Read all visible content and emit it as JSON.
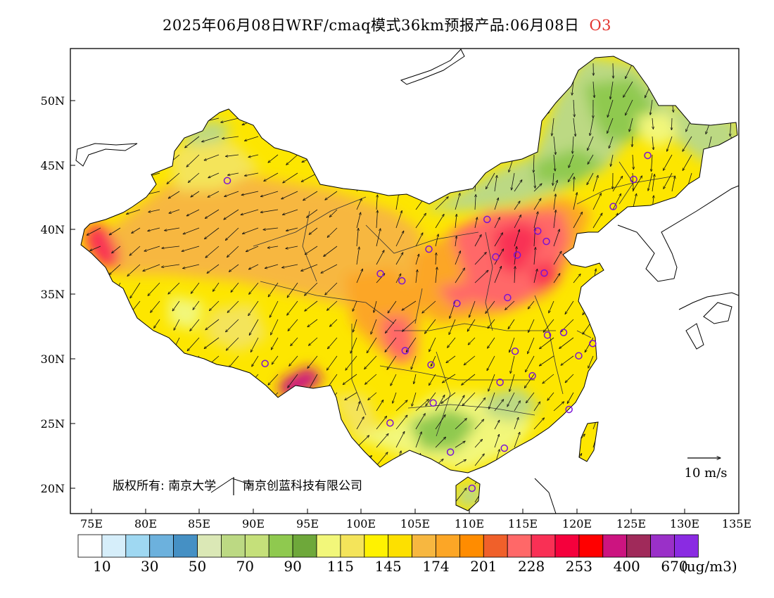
{
  "title": {
    "main": "2025年06月08日WRF/cmaq模式36km预报产品:06月08日",
    "species": "O3",
    "species_color": "#e3352f"
  },
  "map": {
    "lat_labels": [
      "20N",
      "25N",
      "30N",
      "35N",
      "40N",
      "45N",
      "50N"
    ],
    "lon_labels": [
      "75E",
      "80E",
      "85E",
      "90E",
      "95E",
      "100E",
      "105E",
      "110E",
      "115E",
      "120E",
      "125E",
      "130E",
      "135E"
    ],
    "copyright": "版权所有: 南京大学",
    "copyright_company": "南京创蓝科技有限公司",
    "wind_reference": "10 m/s"
  },
  "legend": {
    "colors": [
      "#ffffff",
      "#d6eefa",
      "#9fd8f2",
      "#6cb1dd",
      "#4590c4",
      "#dbe8b6",
      "#bcd983",
      "#c5e07a",
      "#8fc94f",
      "#6ea83a",
      "#f2f77a",
      "#f4e45a",
      "#fff200",
      "#fde000",
      "#f7b740",
      "#fca626",
      "#ff8c00",
      "#f0602a",
      "#ff6868",
      "#f93055",
      "#f5003c",
      "#ff0000",
      "#cc1480",
      "#a02a5a",
      "#9a30c8",
      "#8a2be2"
    ],
    "labels": [
      "10",
      "30",
      "50",
      "70",
      "90",
      "115",
      "145",
      "174",
      "201",
      "228",
      "253",
      "400",
      "670"
    ],
    "units": "(ug/m3)"
  },
  "stations": [
    {
      "lon": 87.6,
      "lat": 43.8
    },
    {
      "lon": 91.1,
      "lat": 29.65
    },
    {
      "lon": 101.8,
      "lat": 36.6
    },
    {
      "lon": 103.8,
      "lat": 36.05
    },
    {
      "lon": 106.3,
      "lat": 38.5
    },
    {
      "lon": 111.7,
      "lat": 40.8
    },
    {
      "lon": 112.5,
      "lat": 37.9
    },
    {
      "lon": 114.5,
      "lat": 38.05
    },
    {
      "lon": 116.4,
      "lat": 39.9
    },
    {
      "lon": 117.2,
      "lat": 39.1
    },
    {
      "lon": 117.0,
      "lat": 36.65
    },
    {
      "lon": 113.6,
      "lat": 34.75
    },
    {
      "lon": 108.9,
      "lat": 34.3
    },
    {
      "lon": 104.1,
      "lat": 30.65
    },
    {
      "lon": 106.5,
      "lat": 29.55
    },
    {
      "lon": 106.7,
      "lat": 26.6
    },
    {
      "lon": 102.7,
      "lat": 25.05
    },
    {
      "lon": 108.3,
      "lat": 22.8
    },
    {
      "lon": 113.3,
      "lat": 23.1
    },
    {
      "lon": 110.3,
      "lat": 20.0
    },
    {
      "lon": 112.9,
      "lat": 28.2
    },
    {
      "lon": 114.3,
      "lat": 30.6
    },
    {
      "lon": 115.9,
      "lat": 28.7
    },
    {
      "lon": 117.3,
      "lat": 31.85
    },
    {
      "lon": 118.8,
      "lat": 32.05
    },
    {
      "lon": 120.2,
      "lat": 30.25
    },
    {
      "lon": 121.5,
      "lat": 31.2
    },
    {
      "lon": 119.3,
      "lat": 26.1
    },
    {
      "lon": 123.4,
      "lat": 41.8
    },
    {
      "lon": 125.3,
      "lat": 43.9
    },
    {
      "lon": 126.6,
      "lat": 45.75
    }
  ]
}
